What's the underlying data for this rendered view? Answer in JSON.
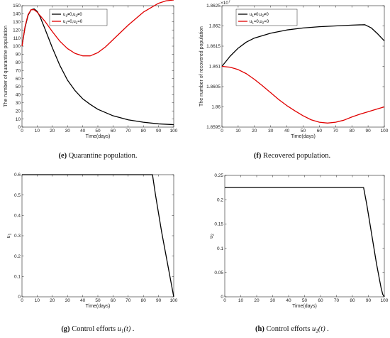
{
  "chart_data": [
    {
      "id": "e",
      "type": "line",
      "caption_letter": "(e)",
      "caption_text": " Quarantine population.",
      "xlabel": "Time(days)",
      "ylabel": "The number of quarantine population",
      "xlim": [
        0,
        100
      ],
      "ylim": [
        0,
        150
      ],
      "xticks": [
        0,
        10,
        20,
        30,
        40,
        50,
        60,
        70,
        80,
        90,
        100
      ],
      "yticks": [
        0,
        10,
        20,
        30,
        40,
        50,
        60,
        70,
        80,
        90,
        100,
        110,
        120,
        130,
        140,
        150
      ],
      "legend_position": "top-right",
      "series": [
        {
          "name": "u1≠0,u2≠0",
          "color": "#000000",
          "x": [
            0,
            2,
            4,
            6,
            8,
            10,
            12,
            15,
            20,
            25,
            30,
            35,
            40,
            45,
            50,
            60,
            70,
            80,
            90,
            100
          ],
          "y": [
            100,
            123,
            138,
            145,
            146,
            143,
            136,
            122,
            98,
            76,
            58,
            45,
            35,
            28,
            22,
            14,
            9,
            6,
            4,
            3
          ]
        },
        {
          "name": "u1=0,u2=0",
          "color": "#e00000",
          "x": [
            0,
            2,
            4,
            6,
            8,
            10,
            15,
            20,
            25,
            30,
            35,
            40,
            45,
            50,
            55,
            60,
            70,
            80,
            90,
            95,
            100
          ],
          "y": [
            100,
            124,
            139,
            145,
            145,
            142,
            131,
            118,
            106,
            97,
            91,
            88,
            88,
            92,
            99,
            108,
            126,
            142,
            153,
            156,
            157
          ]
        }
      ]
    },
    {
      "id": "f",
      "type": "line",
      "caption_letter": "(f)",
      "caption_text": " Recovered population.",
      "xlabel": "Time(days)",
      "ylabel": "The number of recovered population",
      "multiplier": "×10",
      "multiplier_exp": "7",
      "xlim": [
        0,
        100
      ],
      "ylim": [
        1.8595,
        1.8625
      ],
      "xticks": [
        0,
        10,
        20,
        30,
        40,
        50,
        60,
        70,
        80,
        90,
        100
      ],
      "yticks": [
        1.8595,
        1.86,
        1.8605,
        1.861,
        1.8615,
        1.862,
        1.8625
      ],
      "ytick_labels": [
        "1.8595",
        "1.86",
        "1.8605",
        "1.861",
        "1.8615",
        "1.862",
        "1.8625"
      ],
      "legend_position": "top-left",
      "series": [
        {
          "name": "u1≠0,u2≠0",
          "color": "#000000",
          "x": [
            0,
            5,
            10,
            15,
            20,
            30,
            40,
            50,
            60,
            70,
            80,
            88,
            92,
            96,
            100
          ],
          "y": [
            1.861,
            1.86125,
            1.86145,
            1.8616,
            1.8617,
            1.86182,
            1.8619,
            1.86195,
            1.86198,
            1.862,
            1.86202,
            1.86203,
            1.86195,
            1.8618,
            1.86163
          ]
        },
        {
          "name": "u1=0,u2=0",
          "color": "#e00000",
          "x": [
            0,
            5,
            10,
            15,
            20,
            25,
            30,
            35,
            40,
            45,
            50,
            55,
            60,
            65,
            70,
            75,
            80,
            85,
            90,
            95,
            100
          ],
          "y": [
            1.861,
            1.86098,
            1.86092,
            1.86082,
            1.86068,
            1.86052,
            1.86035,
            1.86018,
            1.86003,
            1.8599,
            1.85978,
            1.85968,
            1.85962,
            1.8596,
            1.85962,
            1.85967,
            1.85975,
            1.85982,
            1.85988,
            1.85994,
            1.86
          ]
        }
      ]
    },
    {
      "id": "g",
      "type": "line",
      "caption_letter": "(g)",
      "caption_text": " Control efforts ",
      "caption_math": "u",
      "caption_sub": "1",
      "caption_tail": "(t) .",
      "xlabel": "Time(days)",
      "ylabel": "u1",
      "xlim": [
        0,
        100
      ],
      "ylim": [
        0,
        0.6
      ],
      "xticks": [
        0,
        10,
        20,
        30,
        40,
        50,
        60,
        70,
        80,
        90,
        100
      ],
      "yticks": [
        0,
        0.1,
        0.2,
        0.3,
        0.4,
        0.5,
        0.6
      ],
      "ytick_labels": [
        "0",
        "0.1",
        "0.2",
        "0.3",
        "0.4",
        "0.5",
        "0.6"
      ],
      "series": [
        {
          "name": "u1",
          "color": "#000000",
          "x": [
            0,
            86,
            88,
            90,
            92,
            94,
            96,
            98,
            99,
            100
          ],
          "y": [
            0.6,
            0.6,
            0.5,
            0.41,
            0.32,
            0.24,
            0.16,
            0.08,
            0.04,
            0.0
          ]
        }
      ]
    },
    {
      "id": "h",
      "type": "line",
      "caption_letter": "(h)",
      "caption_text": " Control efforts ",
      "caption_math": "u",
      "caption_sub": "2",
      "caption_tail": "(t) .",
      "xlabel": "Time(days)",
      "ylabel": "u2",
      "xlim": [
        0,
        100
      ],
      "ylim": [
        0,
        0.25
      ],
      "xticks": [
        0,
        10,
        20,
        30,
        40,
        50,
        60,
        70,
        80,
        90,
        100
      ],
      "yticks": [
        0,
        0.05,
        0.1,
        0.15,
        0.2,
        0.25
      ],
      "ytick_labels": [
        "0",
        "0.05",
        "0.1",
        "0.15",
        "0.2",
        "0.25"
      ],
      "series": [
        {
          "name": "u2",
          "color": "#000000",
          "x": [
            0,
            87,
            89,
            91,
            93,
            95,
            97,
            98,
            99,
            100
          ],
          "y": [
            0.225,
            0.225,
            0.19,
            0.15,
            0.11,
            0.07,
            0.035,
            0.018,
            0.005,
            0.0
          ]
        }
      ]
    }
  ]
}
